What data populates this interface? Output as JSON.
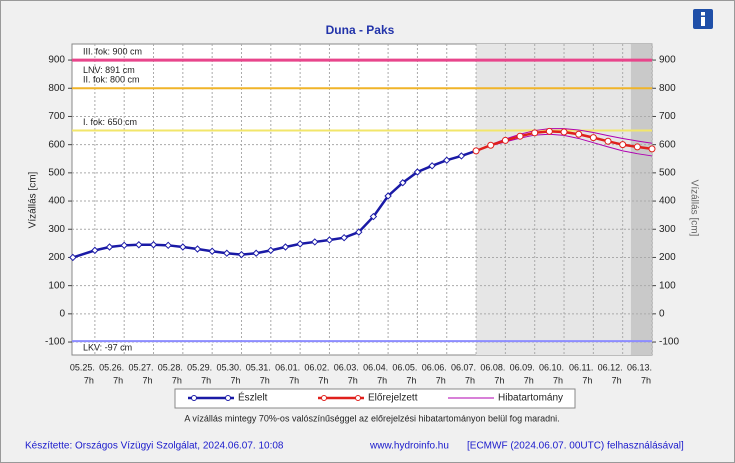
{
  "chart_data": {
    "type": "line",
    "title": "Duna - Paks",
    "y_label": "Vízállás [cm]",
    "y2_label": "Vízállás [cm]",
    "ylim": [
      -146,
      957
    ],
    "yticks": [
      -100,
      0,
      100,
      200,
      300,
      400,
      500,
      600,
      700,
      800,
      900
    ],
    "y2lim": [
      -146,
      957
    ],
    "y2ticks": [
      -100,
      0,
      100,
      200,
      300,
      400,
      500,
      600,
      700,
      800,
      900
    ],
    "xlim": [
      -0.78,
      19
    ],
    "xticks": [
      {
        "value": 0,
        "label": "05.25."
      },
      {
        "value": 1,
        "label": "05.26."
      },
      {
        "value": 2,
        "label": "05.27."
      },
      {
        "value": 3,
        "label": "05.28."
      },
      {
        "value": 4,
        "label": "05.29."
      },
      {
        "value": 5,
        "label": "05.30."
      },
      {
        "value": 6,
        "label": "05.31."
      },
      {
        "value": 7,
        "label": "06.01."
      },
      {
        "value": 8,
        "label": "06.02."
      },
      {
        "value": 9,
        "label": "06.03."
      },
      {
        "value": 10,
        "label": "06.04."
      },
      {
        "value": 11,
        "label": "06.05."
      },
      {
        "value": 12,
        "label": "06.06."
      },
      {
        "value": 13,
        "label": "06.07."
      },
      {
        "value": 14,
        "label": "06.08."
      },
      {
        "value": 15,
        "label": "06.09."
      },
      {
        "value": 16,
        "label": "06.10."
      },
      {
        "value": 17,
        "label": "06.11."
      },
      {
        "value": 18,
        "label": "06.12."
      },
      {
        "value": 19,
        "label": "06.13."
      }
    ],
    "xtick_hour": "7h",
    "grid": true,
    "bands": [
      {
        "from": 13,
        "to": 18.28,
        "color": "#e6e6e6"
      },
      {
        "from": 18.28,
        "to": 19,
        "color": "#c9c9c9"
      }
    ],
    "thresholds": [
      {
        "label": "III. fok: 900 cm",
        "value": 900,
        "color": "#e8458b",
        "width": 3
      },
      {
        "label": "LNV: 891 cm",
        "value": 891,
        "color": "#e8458b",
        "width": 0
      },
      {
        "label": "II. fok: 800 cm",
        "value": 800,
        "color": "#f0b429",
        "width": 2
      },
      {
        "label": "I. fok: 650 cm",
        "value": 650,
        "color": "#f2e66a",
        "width": 2
      },
      {
        "label": "LKV: -97 cm",
        "value": -97,
        "color": "#8c8cff",
        "width": 2
      }
    ],
    "series": [
      {
        "name": "Észlelt",
        "color": "#1a1aa6",
        "marker": "diamond",
        "x": [
          -0.75,
          0,
          0.5,
          1,
          1.5,
          2,
          2.5,
          3,
          3.5,
          4,
          4.5,
          5,
          5.5,
          6,
          6.5,
          7,
          7.5,
          8,
          8.5,
          9,
          9.5,
          10,
          10.5,
          11,
          11.5,
          12,
          12.5,
          13
        ],
        "values": [
          200,
          225,
          237,
          243,
          245,
          245,
          243,
          237,
          230,
          222,
          215,
          210,
          215,
          225,
          237,
          248,
          255,
          262,
          270,
          290,
          345,
          418,
          465,
          503,
          525,
          545,
          560,
          578
        ]
      },
      {
        "name": "Előrejelzett",
        "color": "#e0201c",
        "marker": "circle",
        "x": [
          13,
          13.5,
          14,
          14.5,
          15,
          15.5,
          16,
          16.5,
          17,
          17.5,
          18,
          18.5,
          19
        ],
        "values": [
          578,
          598,
          615,
          630,
          642,
          647,
          645,
          637,
          625,
          612,
          600,
          592,
          585
        ]
      }
    ],
    "error_band": {
      "name": "Hibatartomány",
      "color": "#b000b0",
      "x": [
        13,
        13.5,
        14,
        14.5,
        15,
        15.5,
        16,
        16.5,
        17,
        17.5,
        18,
        18.5,
        19
      ],
      "upper": [
        578,
        600,
        620,
        637,
        650,
        657,
        657,
        652,
        643,
        632,
        622,
        613,
        605
      ],
      "lower": [
        578,
        596,
        610,
        623,
        634,
        637,
        633,
        622,
        607,
        592,
        578,
        568,
        560
      ]
    },
    "note": "A vízállás mintegy 70%-os valószínűséggel az előrejelzési hibatartományon belül fog maradni.",
    "footer": [
      "Készítette: Országos Vízügyi Szolgálat, 2024.06.07. 10:08",
      "www.hydroinfo.hu",
      "[ECMWF (2024.06.07. 00UTC) felhasználásával]"
    ]
  }
}
